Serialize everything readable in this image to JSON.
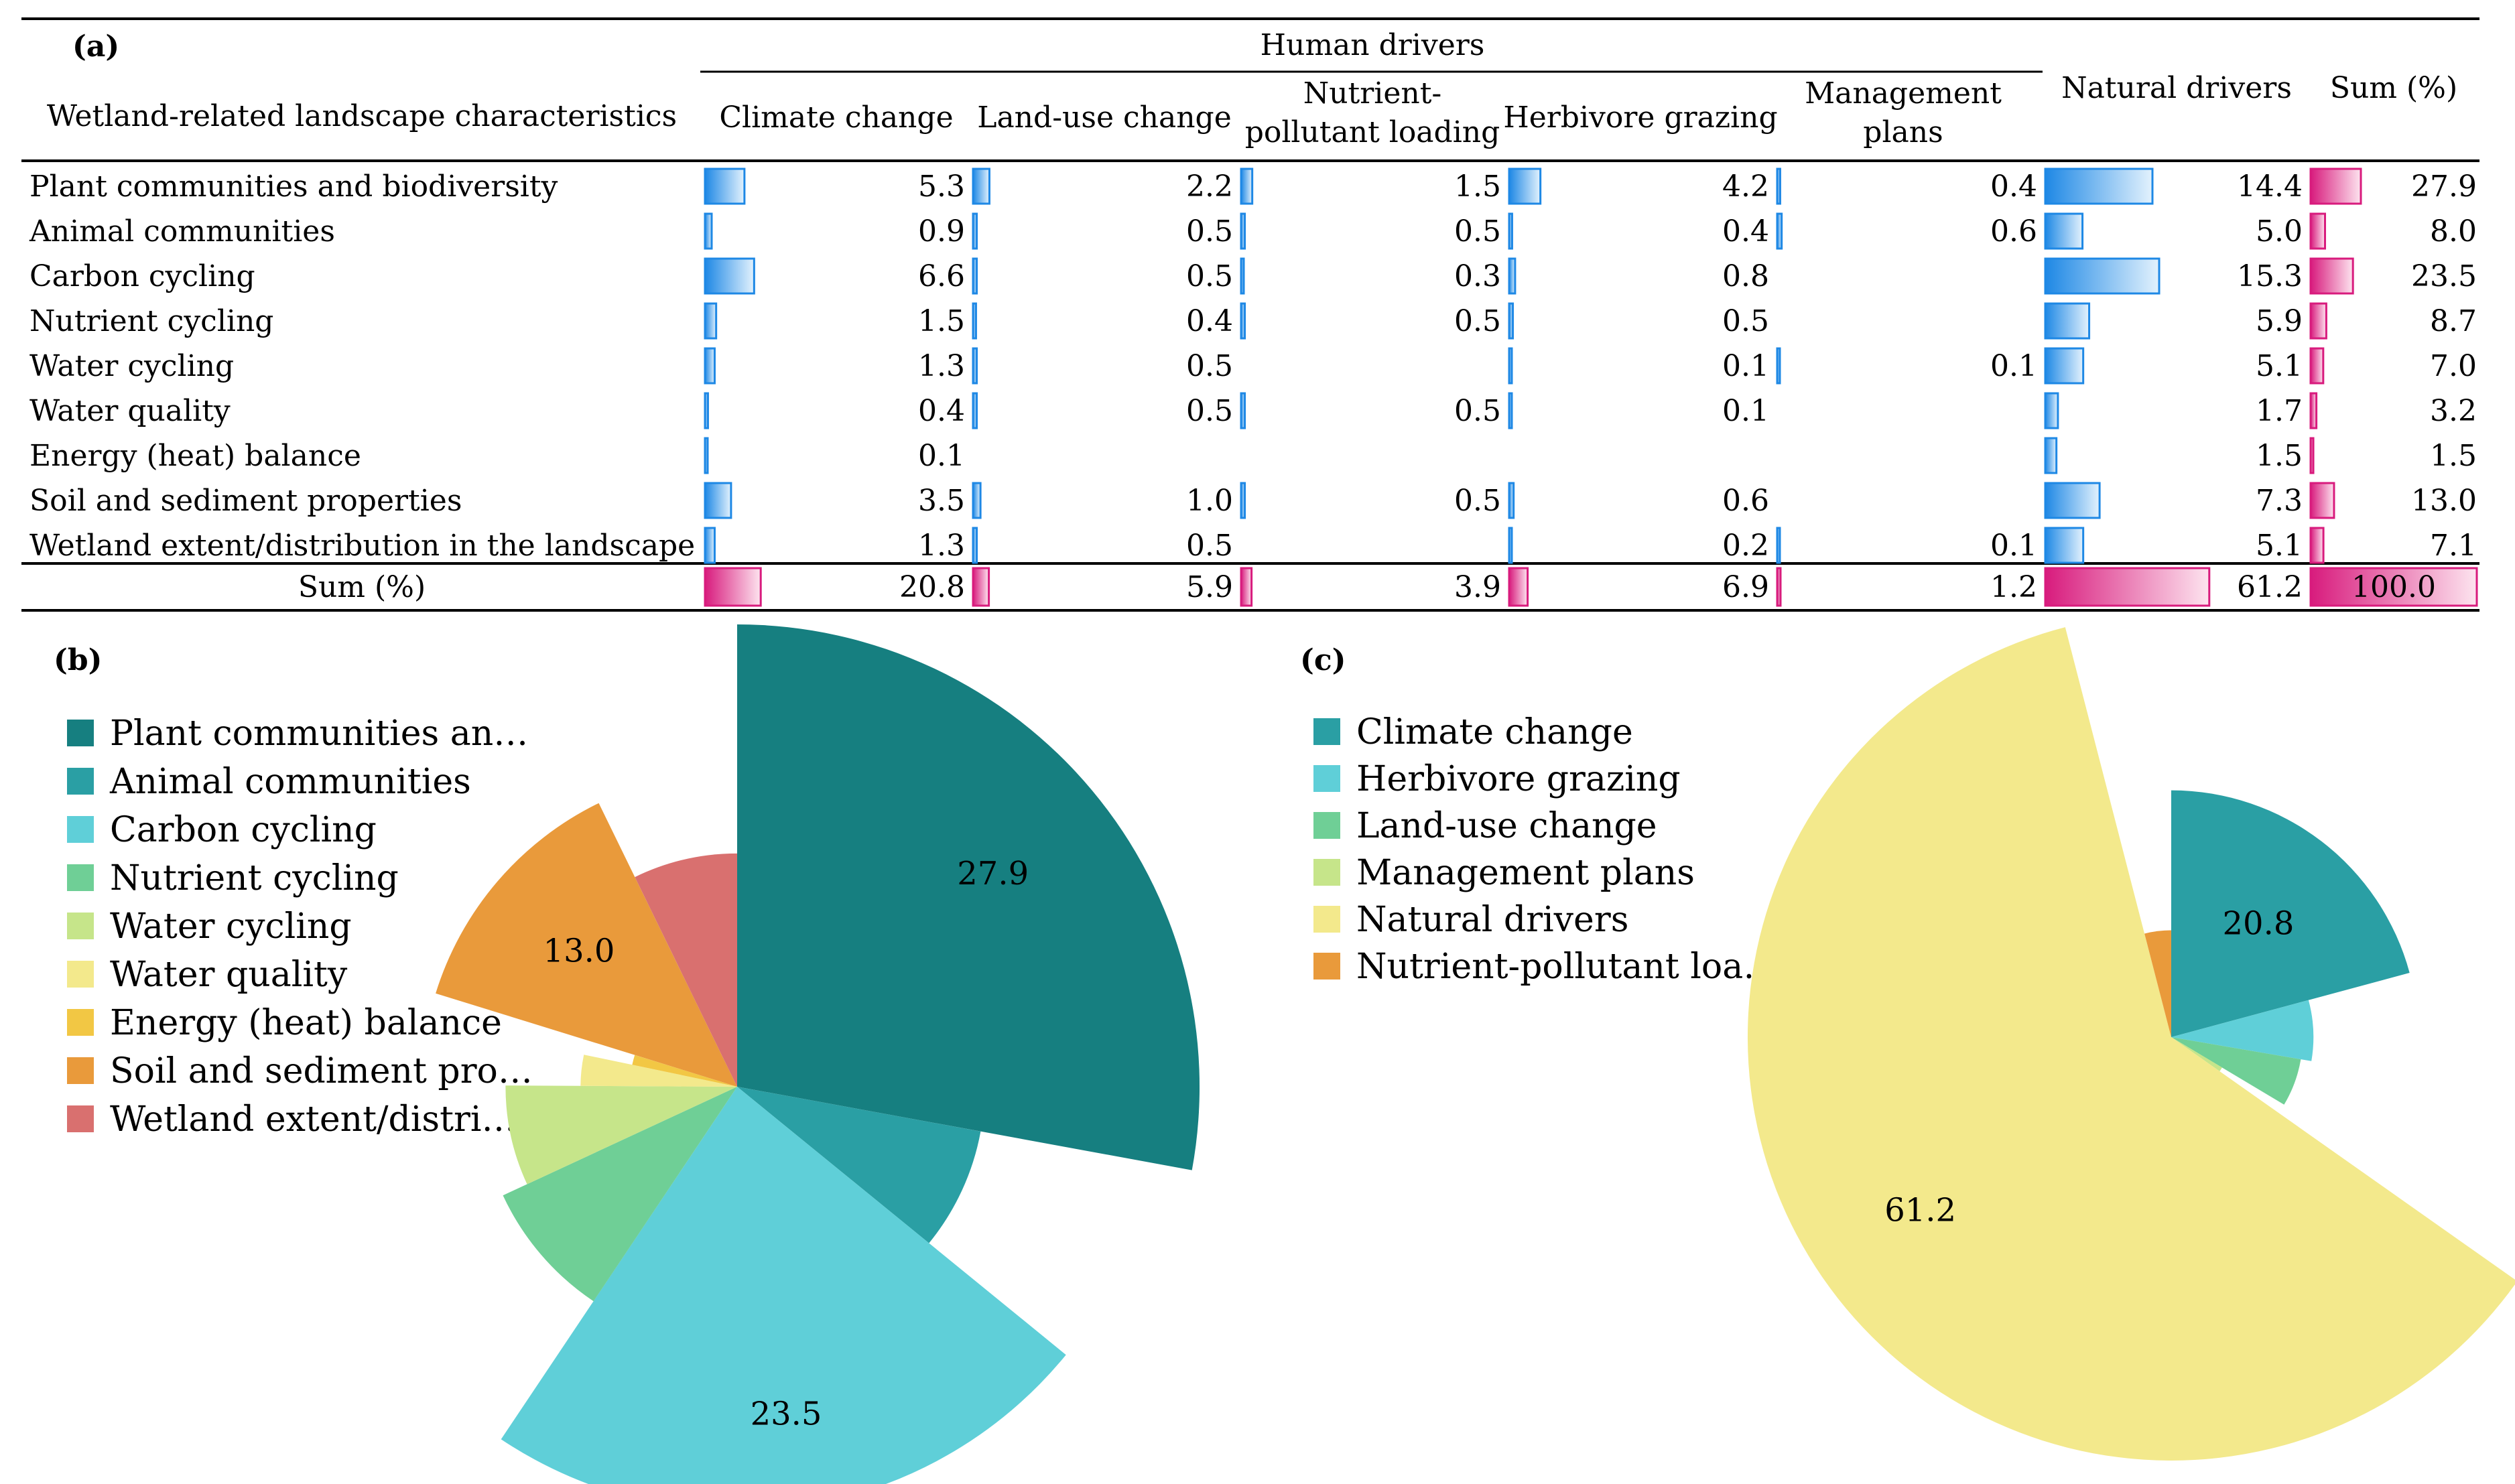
{
  "panel_a": {
    "label": "(a)",
    "group_header": "Human drivers",
    "row_header": "Wetland-related landscape characteristics",
    "columns": [
      [
        "Climate change"
      ],
      [
        "Land-use change"
      ],
      [
        "Nutrient-",
        "pollutant loading"
      ],
      [
        "Herbivore grazing"
      ],
      [
        "Management",
        "plans"
      ],
      [
        "Natural drivers"
      ],
      [
        "Sum (%)"
      ]
    ],
    "rows": [
      {
        "label": "Plant communities and biodiversity",
        "values": [
          5.3,
          2.2,
          1.5,
          4.2,
          0.4,
          14.4,
          27.9
        ]
      },
      {
        "label": "Animal communities",
        "values": [
          0.9,
          0.5,
          0.5,
          0.4,
          0.6,
          5.0,
          8.0
        ]
      },
      {
        "label": "Carbon cycling",
        "values": [
          6.6,
          0.5,
          0.3,
          0.8,
          null,
          15.3,
          23.5
        ]
      },
      {
        "label": "Nutrient cycling",
        "values": [
          1.5,
          0.4,
          0.5,
          0.5,
          null,
          5.9,
          8.7
        ]
      },
      {
        "label": "Water cycling",
        "values": [
          1.3,
          0.5,
          null,
          0.1,
          0.1,
          5.1,
          7.0
        ]
      },
      {
        "label": "Water quality",
        "values": [
          0.4,
          0.5,
          0.5,
          0.1,
          null,
          1.7,
          3.2
        ]
      },
      {
        "label": "Energy (heat) balance",
        "values": [
          0.1,
          null,
          null,
          null,
          null,
          1.5,
          1.5
        ]
      },
      {
        "label": "Soil and sediment properties",
        "values": [
          3.5,
          1.0,
          0.5,
          0.6,
          null,
          7.3,
          13.0
        ]
      },
      {
        "label": "Wetland extent/distribution in the landscape",
        "values": [
          1.3,
          0.5,
          null,
          0.2,
          0.1,
          5.1,
          7.1
        ]
      }
    ],
    "sum_row": {
      "label": "Sum (%)",
      "values": [
        20.8,
        5.9,
        3.9,
        6.9,
        1.2,
        61.2,
        100.0
      ]
    },
    "bar_max_cell": 15.3,
    "bar_max_sum": 100.0,
    "colors": {
      "blue_bar": "#1e88e5",
      "pink_bar": "#d81b7d"
    }
  },
  "chart_data": [
    {
      "type": "pie",
      "variant": "polar-area",
      "label": "(b)",
      "legend": [
        "Plant communities an…",
        "Animal communities",
        "Carbon cycling",
        "Nutrient cycling",
        "Water cycling",
        "Water quality",
        "Energy (heat) balance",
        "Soil and sediment pro…",
        "Wetland extent/distri…"
      ],
      "values": [
        27.9,
        8.0,
        23.5,
        8.7,
        7.0,
        3.2,
        1.5,
        13.0,
        7.1
      ],
      "data_labels": [
        "27.9",
        "",
        "23.5",
        "",
        "",
        "",
        "",
        "13.0",
        ""
      ],
      "colors": [
        "#167f80",
        "#2a9fa4",
        "#5fcfd8",
        "#6fcf96",
        "#c6e58a",
        "#f3e98c",
        "#f2c744",
        "#e99a3b",
        "#d9706f"
      ],
      "max_value": 27.9
    },
    {
      "type": "pie",
      "variant": "polar-area",
      "label": "(c)",
      "legend": [
        "Climate change",
        "Herbivore grazing",
        "Land-use change",
        "Management plans",
        "Natural drivers",
        "Nutrient-pollutant loa…"
      ],
      "values": [
        20.8,
        6.9,
        5.9,
        1.2,
        61.2,
        3.9
      ],
      "data_labels": [
        "20.8",
        "",
        "",
        "",
        "61.2",
        ""
      ],
      "colors": [
        "#2a9fa4",
        "#5fcfd8",
        "#6fcf96",
        "#c6e58a",
        "#f3e98c",
        "#e99a3b"
      ],
      "max_value": 61.2
    }
  ]
}
